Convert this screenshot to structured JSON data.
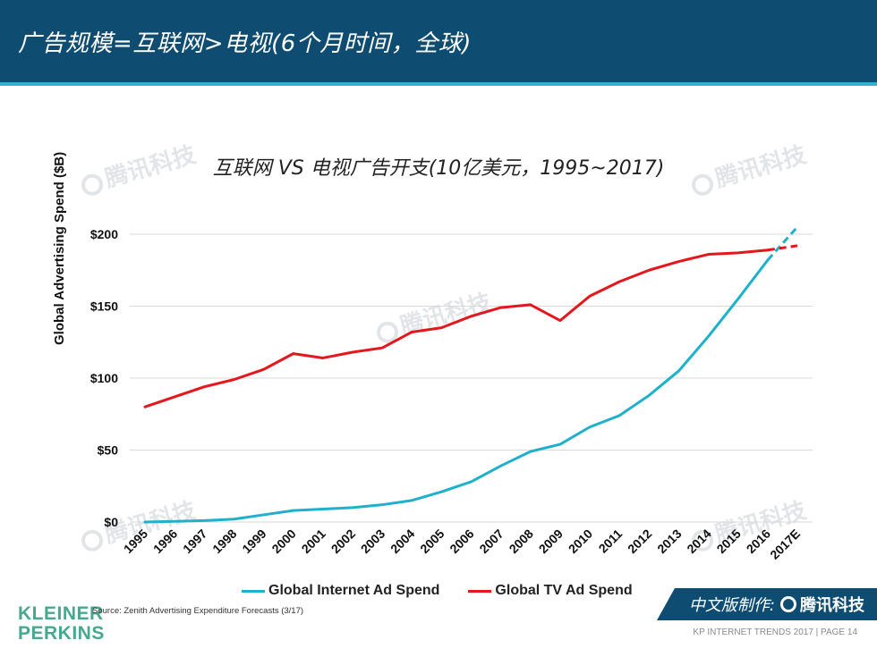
{
  "header": {
    "title": "广告规模=互联网>电视(6个月时间，全球)"
  },
  "chart_data": {
    "type": "line",
    "title": "互联网 VS 电视广告开支(10亿美元，1995~2017)",
    "ylabel": "Global Advertising Spend ($B)",
    "xlabel": "",
    "ylim": [
      0,
      200
    ],
    "ytick_values": [
      0,
      50,
      100,
      150,
      200
    ],
    "ytick_labels": [
      "$0",
      "$50",
      "$100",
      "$150",
      "$200"
    ],
    "categories": [
      "1995",
      "1996",
      "1997",
      "1998",
      "1999",
      "2000",
      "2001",
      "2002",
      "2003",
      "2004",
      "2005",
      "2006",
      "2007",
      "2008",
      "2009",
      "2010",
      "2011",
      "2012",
      "2013",
      "2014",
      "2015",
      "2016",
      "2017E"
    ],
    "projected_from_index": 21,
    "series": [
      {
        "name": "Global Internet Ad Spend",
        "color": "#1fb0cc",
        "values": [
          0,
          0.5,
          1,
          2,
          5,
          8,
          9,
          10,
          12,
          15,
          21,
          28,
          39,
          49,
          54,
          66,
          74,
          88,
          105,
          129,
          155,
          182,
          205
        ]
      },
      {
        "name": "Global TV Ad Spend",
        "color": "#e3171c",
        "values": [
          80,
          87,
          94,
          99,
          106,
          117,
          114,
          118,
          121,
          132,
          135,
          143,
          149,
          151,
          140,
          157,
          167,
          175,
          181,
          186,
          187,
          189,
          192
        ]
      }
    ],
    "legend_position": "bottom",
    "grid": true
  },
  "watermark": {
    "text": "腾讯科技"
  },
  "source": "Source: Zenith Advertising Expenditure Forecasts (3/17)",
  "logo": {
    "line1": "KLEINER",
    "line2": "PERKINS"
  },
  "badge": {
    "prefix": "中文版制作:",
    "brand": "腾讯科技"
  },
  "footer": {
    "text": "KP INTERNET TRENDS 2017  |  PAGE 14"
  }
}
